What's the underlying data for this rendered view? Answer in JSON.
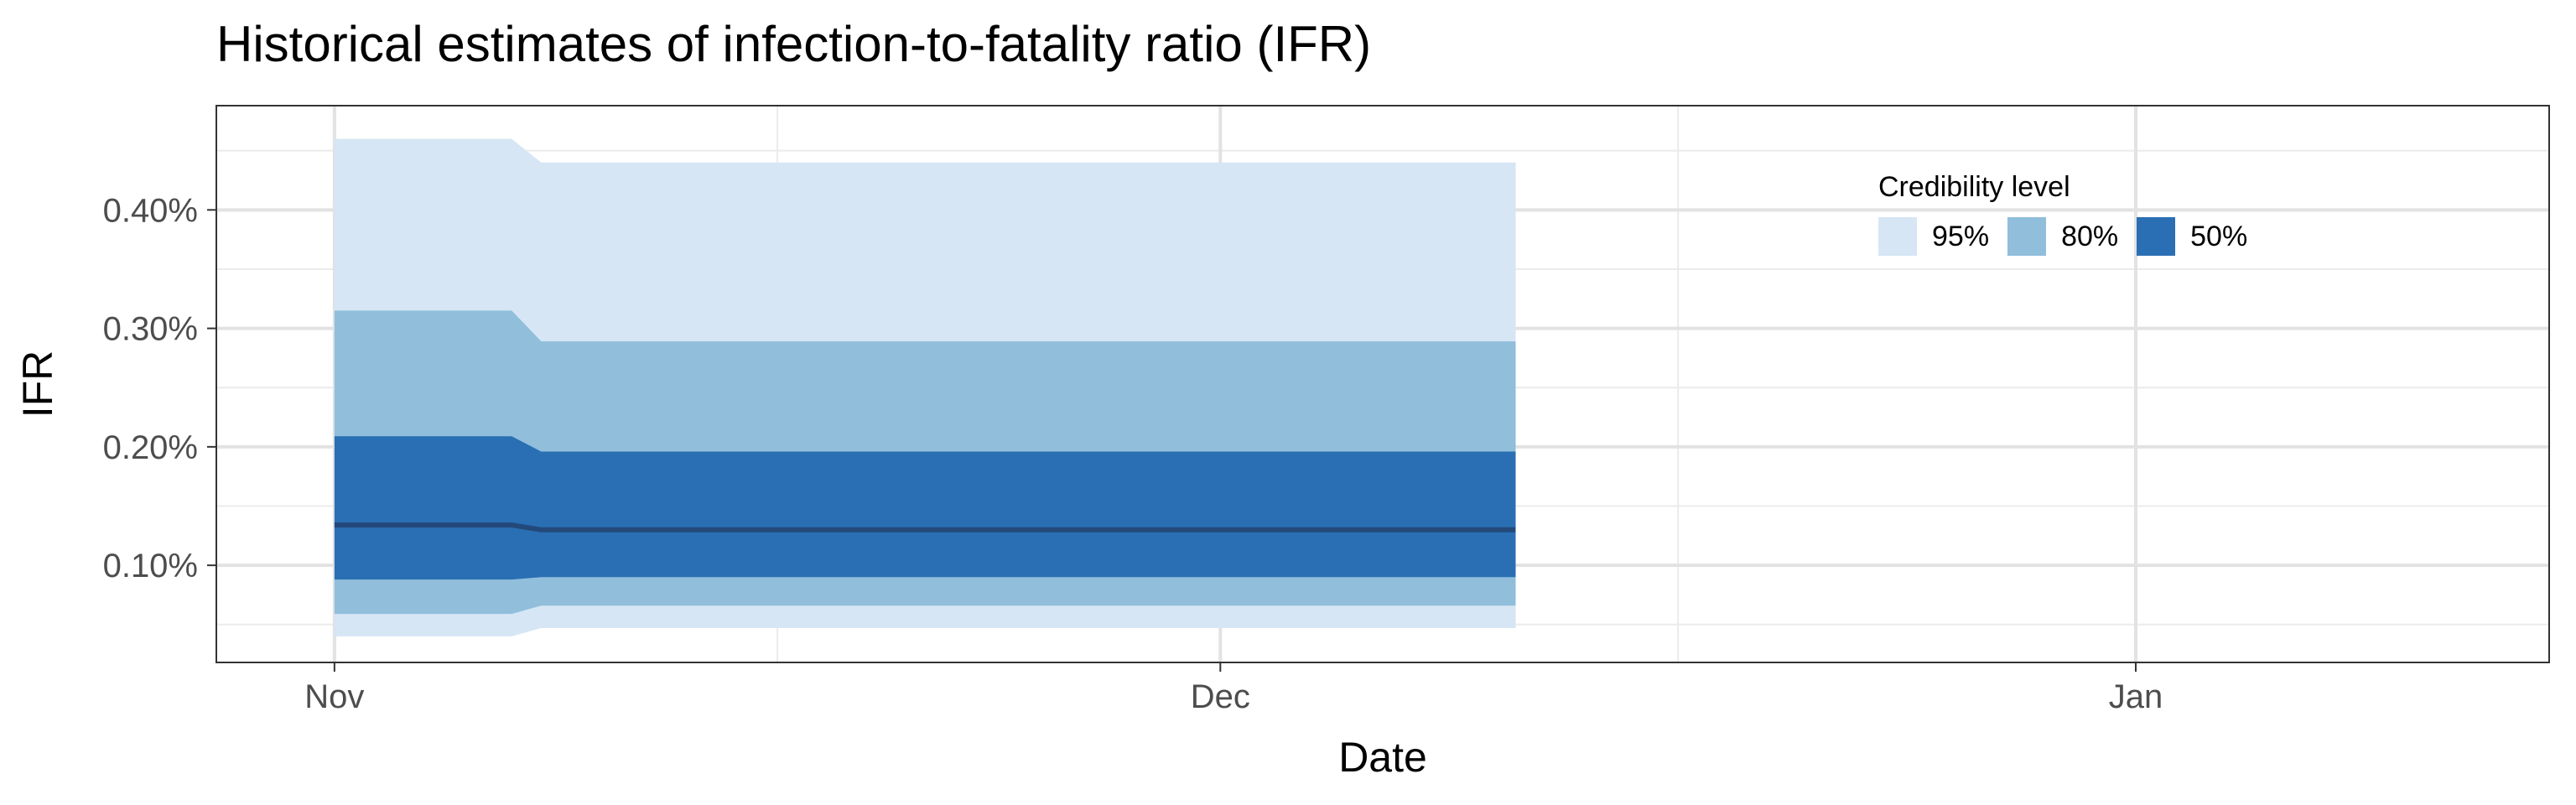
{
  "chart_data": {
    "type": "area",
    "title": "Historical estimates of infection-to-fatality ratio (IFR)",
    "xlabel": "Date",
    "ylabel": "IFR",
    "x_tick_labels": [
      "Nov",
      "Dec",
      "Jan"
    ],
    "x_tick_dates": [
      "2020-11-01",
      "2020-12-01",
      "2021-01-01"
    ],
    "xlim": [
      "2020-10-28",
      "2021-01-15"
    ],
    "y_tick_labels": [
      "0.10%",
      "0.20%",
      "0.30%",
      "0.40%"
    ],
    "y_ticks": [
      0.1,
      0.2,
      0.3,
      0.4
    ],
    "ylim": [
      0.018,
      0.488
    ],
    "grid": true,
    "legend": {
      "title": "Credibility level",
      "placement": "top-right",
      "items": [
        {
          "label": "95%",
          "color": "#d6e6f4"
        },
        {
          "label": "80%",
          "color": "#90bedb"
        },
        {
          "label": "50%",
          "color": "#2a6fb3"
        }
      ]
    },
    "median_color": "#23497a",
    "dates": [
      "2020-11-01",
      "2020-11-07",
      "2020-11-08",
      "2020-12-11"
    ],
    "median": [
      0.134,
      0.134,
      0.13,
      0.13
    ],
    "bands": [
      {
        "level": "95%",
        "lower": [
          0.04,
          0.04,
          0.047,
          0.047
        ],
        "upper": [
          0.46,
          0.46,
          0.44,
          0.44
        ]
      },
      {
        "level": "80%",
        "lower": [
          0.059,
          0.059,
          0.066,
          0.066
        ],
        "upper": [
          0.315,
          0.315,
          0.289,
          0.289
        ]
      },
      {
        "level": "50%",
        "lower": [
          0.088,
          0.088,
          0.09,
          0.09
        ],
        "upper": [
          0.209,
          0.209,
          0.196,
          0.196
        ]
      }
    ]
  }
}
